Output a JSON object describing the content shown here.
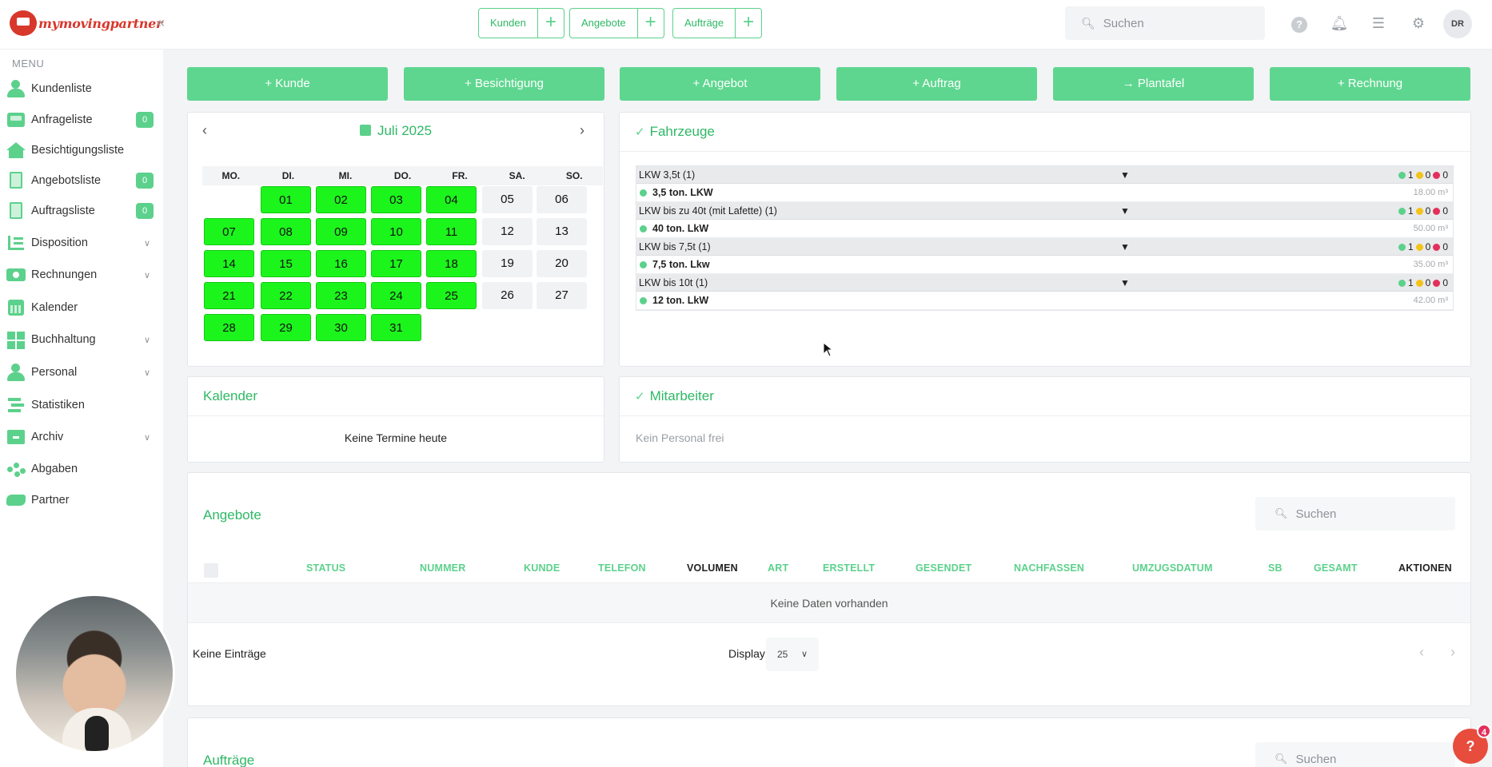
{
  "brand": {
    "name": "mymovingpartner"
  },
  "header": {
    "quick": [
      {
        "label": "Kunden"
      },
      {
        "label": "Angebote"
      },
      {
        "label": "Aufträge"
      }
    ],
    "search_placeholder": "Suchen",
    "user_initials": "DR"
  },
  "sidebar": {
    "menu_label": "MENU",
    "items": [
      {
        "label": "Kundenliste",
        "icon": "users-icon"
      },
      {
        "label": "Anfrageliste",
        "icon": "inbox-icon",
        "badge": "0"
      },
      {
        "label": "Besichtigungsliste",
        "icon": "house-icon"
      },
      {
        "label": "Angebotsliste",
        "icon": "document-icon",
        "badge": "0"
      },
      {
        "label": "Auftragsliste",
        "icon": "order-document-icon",
        "badge": "0"
      },
      {
        "label": "Disposition",
        "icon": "disposition-icon",
        "expandable": true
      },
      {
        "label": "Rechnungen",
        "icon": "invoice-icon",
        "expandable": true
      },
      {
        "label": "Kalender",
        "icon": "calendar-icon"
      },
      {
        "label": "Buchhaltung",
        "icon": "accounting-icon",
        "expandable": true
      },
      {
        "label": "Personal",
        "icon": "staff-icon",
        "expandable": true
      },
      {
        "label": "Statistiken",
        "icon": "statistics-icon"
      },
      {
        "label": "Archiv",
        "icon": "archive-icon",
        "expandable": true
      },
      {
        "label": "Abgaben",
        "icon": "network-icon"
      },
      {
        "label": "Partner",
        "icon": "handshake-icon"
      }
    ]
  },
  "actions": [
    "Kunde",
    "Besichtigung",
    "Angebot",
    "Auftrag",
    "Plantafel",
    "Rechnung"
  ],
  "calendar": {
    "month": "Juli 2025",
    "weekdays": [
      "MO.",
      "DI.",
      "MI.",
      "DO.",
      "FR.",
      "SA.",
      "SO."
    ],
    "first_weekday_index": 1,
    "days": 31,
    "highlighted": [
      1,
      2,
      3,
      4,
      7,
      8,
      9,
      10,
      11,
      14,
      15,
      16,
      17,
      18,
      21,
      22,
      23,
      24,
      25,
      28,
      29,
      30,
      31
    ]
  },
  "vehicles": {
    "title": "Fahrzeuge",
    "groups": [
      {
        "name": "LKW 3,5t (1)",
        "green": "1",
        "yellow": "0",
        "red": "0",
        "vehicle": "3,5 ton. LKW",
        "volume": "18.00 m³"
      },
      {
        "name": "LKW bis zu 40t (mit Lafette) (1)",
        "green": "1",
        "yellow": "0",
        "red": "0",
        "vehicle": "40 ton. LkW",
        "volume": "50.00 m³"
      },
      {
        "name": "LKW bis 7,5t (1)",
        "green": "1",
        "yellow": "0",
        "red": "0",
        "vehicle": "7,5 ton. Lkw",
        "volume": "35.00 m³"
      },
      {
        "name": "LKW bis 10t (1)",
        "green": "1",
        "yellow": "0",
        "red": "0",
        "vehicle": "12 ton. LkW",
        "volume": "42.00 m³"
      }
    ]
  },
  "kalender": {
    "title": "Kalender",
    "empty": "Keine Termine heute"
  },
  "mitarbeiter": {
    "title": "Mitarbeiter",
    "empty": "Kein Personal frei"
  },
  "angebote": {
    "title": "Angebote",
    "search_placeholder": "Suchen",
    "columns": [
      "STATUS",
      "NUMMER",
      "KUNDE",
      "TELEFON",
      "VOLUMEN",
      "ART",
      "ERSTELLT",
      "GESENDET",
      "NACHFASSEN",
      "UMZUGSDATUM",
      "SB",
      "GESAMT",
      "AKTIONEN"
    ],
    "empty": "Keine Daten vorhanden",
    "footer_left": "Keine Einträge",
    "display_label": "Display",
    "display_value": "25"
  },
  "auftraege": {
    "title": "Aufträge",
    "search_placeholder": "Suchen"
  },
  "help": {
    "badge": "4",
    "label": "?"
  },
  "colors": {
    "accent": "#5cd18c",
    "day_highlight": "#1cf51c",
    "danger": "#e3305b"
  }
}
